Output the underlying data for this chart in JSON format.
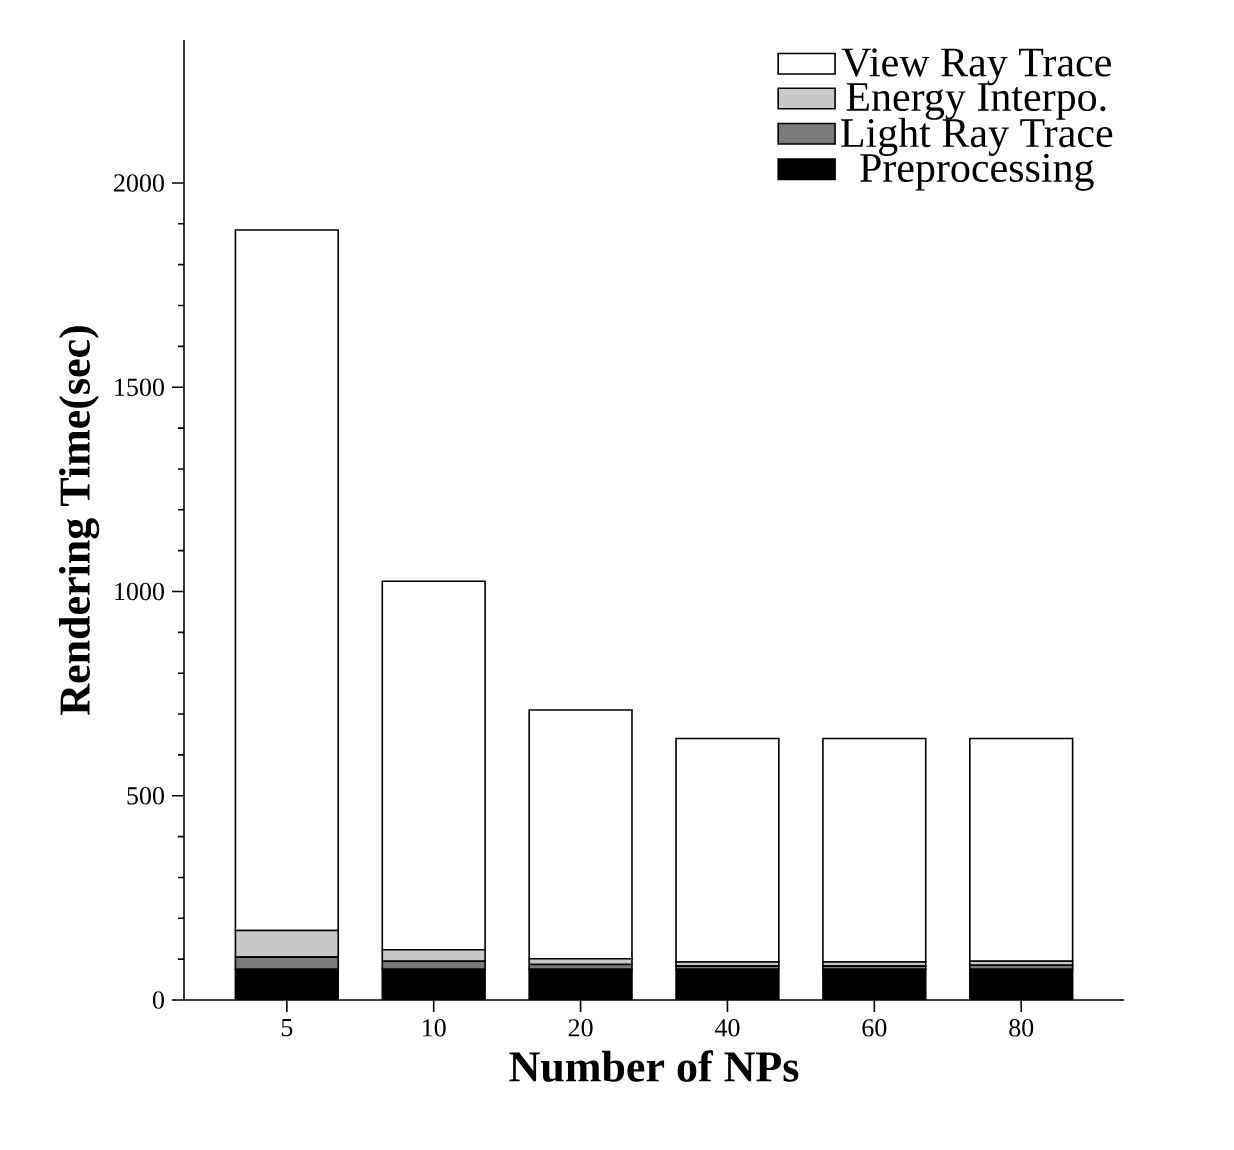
{
  "chart_data": {
    "type": "bar",
    "stacked": true,
    "xlabel": "Number of NPs",
    "ylabel": "Rendering Time(sec)",
    "categories": [
      "5",
      "10",
      "20",
      "40",
      "60",
      "80"
    ],
    "series": [
      {
        "name": "Preprocessing",
        "color": "#000000",
        "values": [
          75,
          75,
          75,
          75,
          75,
          75
        ]
      },
      {
        "name": "Light Ray Trace",
        "color": "#7a7a7a",
        "values": [
          30,
          20,
          12,
          8,
          8,
          10
        ]
      },
      {
        "name": "Energy Interpo.",
        "color": "#c8c8c8",
        "values": [
          65,
          28,
          14,
          10,
          10,
          10
        ]
      },
      {
        "name": "View Ray Trace",
        "color": "#ffffff",
        "values": [
          1715,
          902,
          609,
          547,
          547,
          545
        ]
      }
    ],
    "ylim": [
      0,
      2350
    ],
    "yticks": [
      0,
      500,
      1000,
      1500,
      2000
    ],
    "legend": "top right",
    "grid": false
  }
}
